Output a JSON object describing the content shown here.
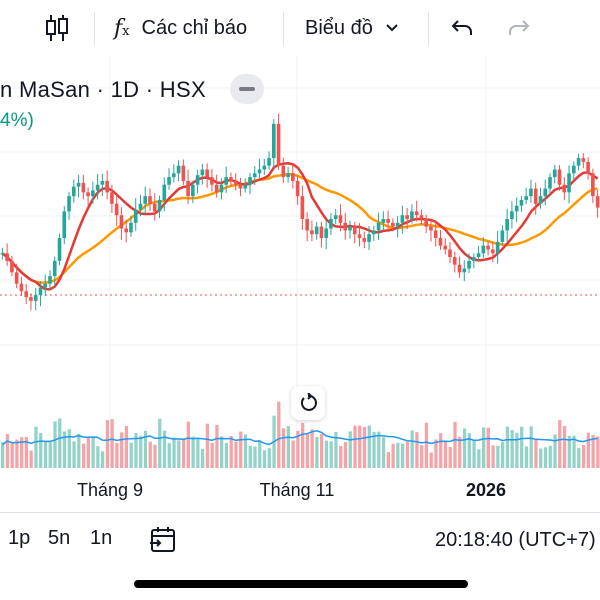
{
  "toolbar": {
    "indicators_label": "Các chỉ báo",
    "chart_type_label": "Biểu đồ"
  },
  "symbol": {
    "title": "n MaSan · 1D · HSX",
    "change": "4%)"
  },
  "colors": {
    "up": "#26a69a",
    "down": "#ef5350",
    "up_volume": "#92d3c9",
    "down_volume": "#f5a3a6",
    "ma_fast": "#e53935",
    "ma_slow": "#ff9800",
    "volume_ma": "#2196f3",
    "price_line": "#ef5350"
  },
  "x_axis": {
    "labels": [
      "Tháng 9",
      "Tháng 11",
      "2026"
    ]
  },
  "bottom_bar": {
    "ranges": [
      "1p",
      "5n",
      "1n"
    ],
    "time": "20:18:40 (UTC+7)"
  },
  "chart_data": {
    "type": "candlestick",
    "price_axis_visible": false,
    "closes": [
      120,
      116,
      110,
      104,
      100,
      97,
      95,
      98,
      102,
      104,
      108,
      116,
      128,
      142,
      150,
      155,
      157,
      152,
      150,
      153,
      156,
      158,
      152,
      146,
      140,
      133,
      131,
      136,
      143,
      146,
      150,
      146,
      142,
      148,
      156,
      160,
      162,
      166,
      158,
      150,
      156,
      161,
      164,
      160,
      156,
      152,
      156,
      160,
      158,
      156,
      154,
      156,
      160,
      162,
      164,
      166,
      170,
      188,
      166,
      160,
      162,
      158,
      150,
      138,
      132,
      130,
      134,
      128,
      133,
      138,
      140,
      136,
      132,
      134,
      130,
      128,
      126,
      130,
      132,
      136,
      138,
      136,
      134,
      136,
      140,
      138,
      142,
      140,
      138,
      134,
      132,
      128,
      124,
      122,
      118,
      114,
      110,
      112,
      116,
      118,
      120,
      124,
      122,
      120,
      126,
      132,
      138,
      142,
      145,
      148,
      150,
      154,
      146,
      150,
      154,
      160,
      164,
      156,
      152,
      162,
      166,
      170,
      168,
      162,
      150,
      144
    ]
  }
}
